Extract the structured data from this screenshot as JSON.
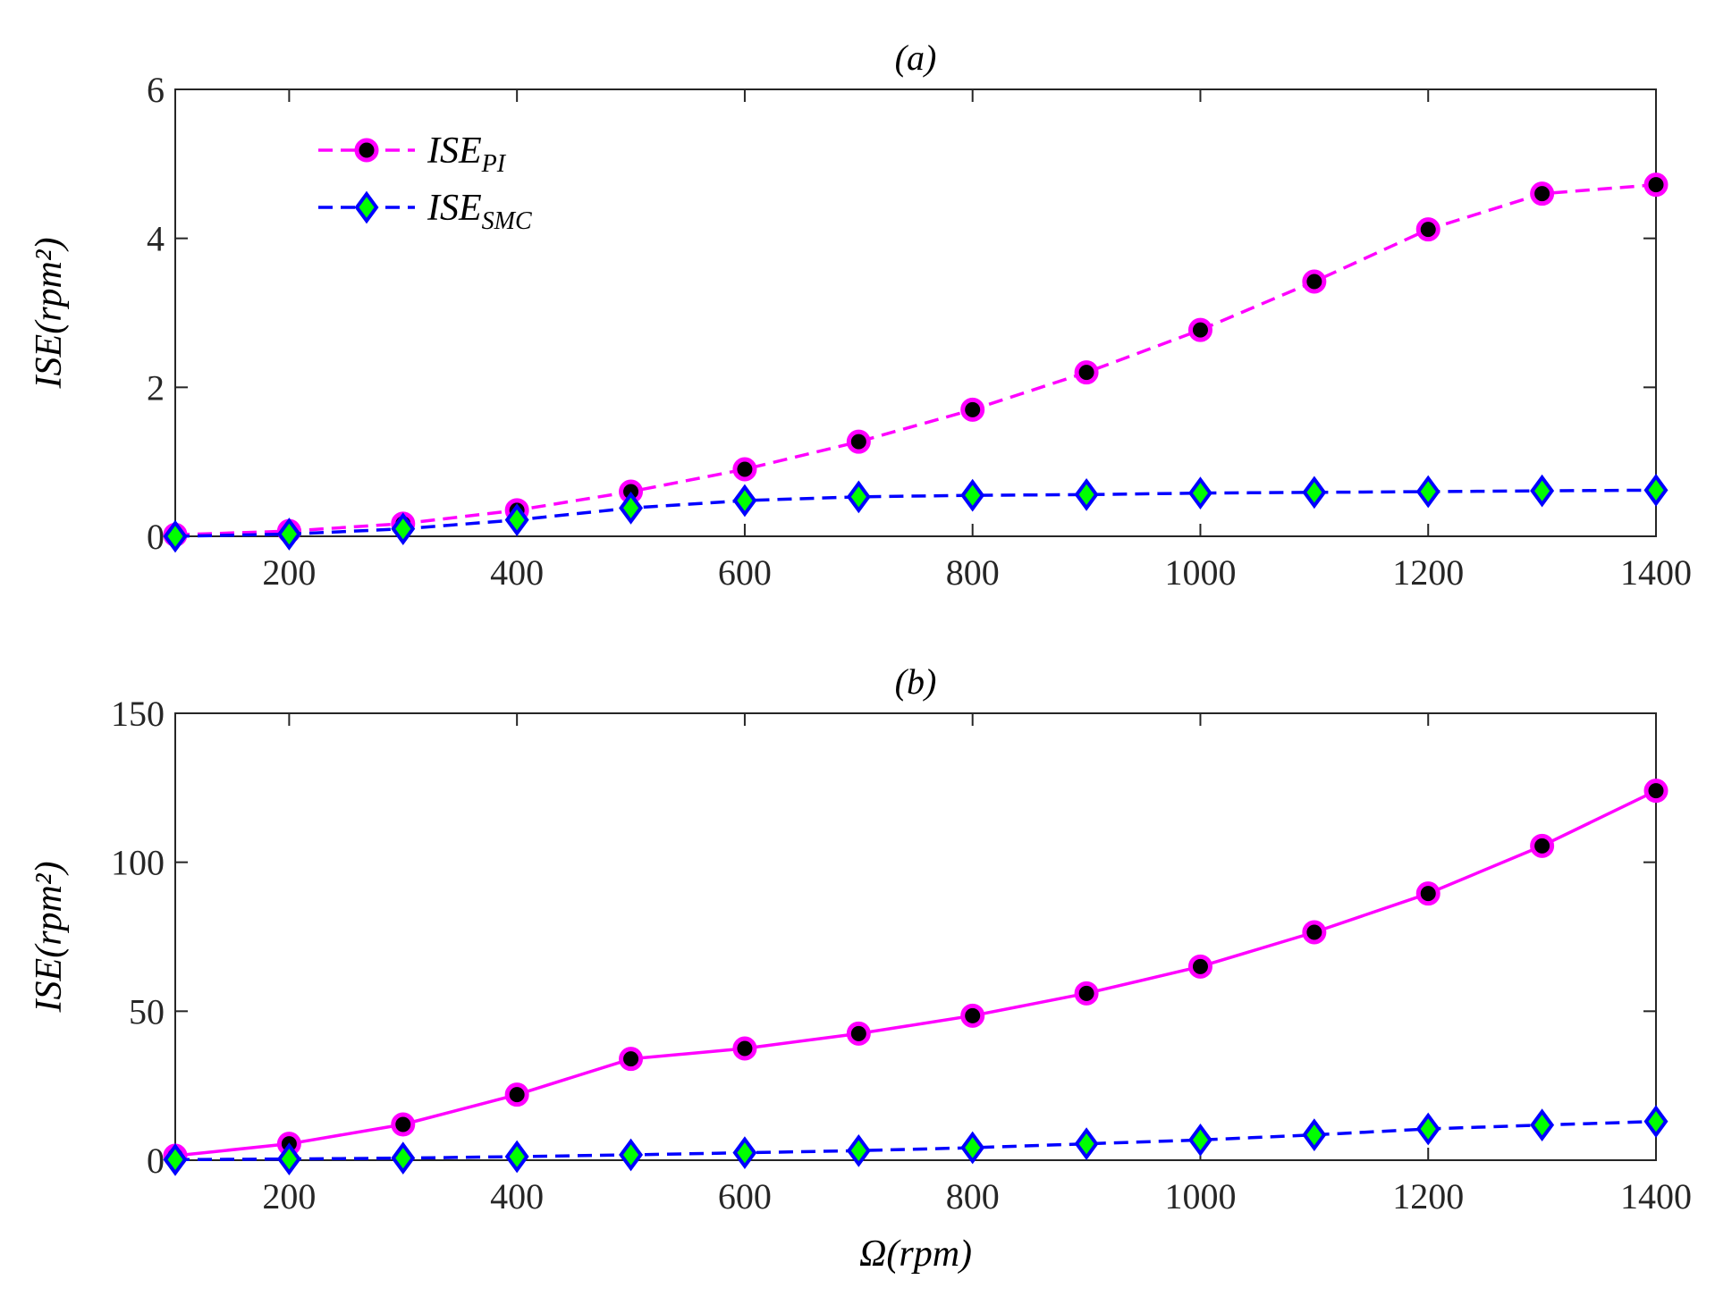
{
  "chart_data": [
    {
      "id": "a",
      "type": "line",
      "title": "(a)",
      "xlabel": "",
      "ylabel": "ISE(rpm²)",
      "xlim": [
        100,
        1400
      ],
      "ylim": [
        0,
        6
      ],
      "xticks": [
        200,
        400,
        600,
        800,
        1000,
        1200,
        1400
      ],
      "yticks": [
        0,
        2,
        4,
        6
      ],
      "grid": true,
      "legend": "top-left",
      "x": [
        100,
        200,
        300,
        400,
        500,
        600,
        700,
        800,
        900,
        1000,
        1100,
        1200,
        1300,
        1400
      ],
      "series": [
        {
          "name": "ISE_PI",
          "legend_main": "ISE",
          "legend_sub": "PI",
          "color": "#ff00ff",
          "marker": "circle",
          "marker_fill": "#000000",
          "line_style": "dashed",
          "values": [
            0.02,
            0.07,
            0.17,
            0.35,
            0.6,
            0.9,
            1.27,
            1.7,
            2.2,
            2.77,
            3.42,
            4.12,
            4.6,
            4.72
          ]
        },
        {
          "name": "ISE_SMC",
          "legend_main": "ISE",
          "legend_sub": "SMC",
          "color": "#0000ff",
          "marker": "diamond",
          "marker_fill": "#00ff00",
          "line_style": "dashed",
          "values": [
            0.0,
            0.03,
            0.1,
            0.22,
            0.38,
            0.48,
            0.53,
            0.55,
            0.56,
            0.58,
            0.59,
            0.6,
            0.61,
            0.62
          ]
        }
      ]
    },
    {
      "id": "b",
      "type": "line",
      "title": "(b)",
      "xlabel": "Ω(rpm)",
      "ylabel": "ISE(rpm²)",
      "xlim": [
        100,
        1400
      ],
      "ylim": [
        0,
        150
      ],
      "xticks": [
        200,
        400,
        600,
        800,
        1000,
        1200,
        1400
      ],
      "yticks": [
        0,
        50,
        100,
        150
      ],
      "grid": true,
      "x": [
        100,
        200,
        300,
        400,
        500,
        600,
        700,
        800,
        900,
        1000,
        1100,
        1200,
        1300,
        1400
      ],
      "series": [
        {
          "name": "ISE_PI",
          "color": "#ff00ff",
          "marker": "circle",
          "marker_fill": "#000000",
          "line_style": "solid",
          "values": [
            1.5,
            5.5,
            12,
            22,
            34,
            37.5,
            42.5,
            48.5,
            56,
            65,
            76.5,
            89.5,
            105.5,
            124
          ]
        },
        {
          "name": "ISE_SMC",
          "color": "#0000ff",
          "marker": "diamond",
          "marker_fill": "#00ff00",
          "line_style": "dashed",
          "values": [
            0.2,
            0.4,
            0.7,
            1.2,
            1.8,
            2.5,
            3.2,
            4.2,
            5.5,
            6.8,
            8.5,
            10.5,
            11.8,
            13
          ]
        }
      ]
    }
  ]
}
